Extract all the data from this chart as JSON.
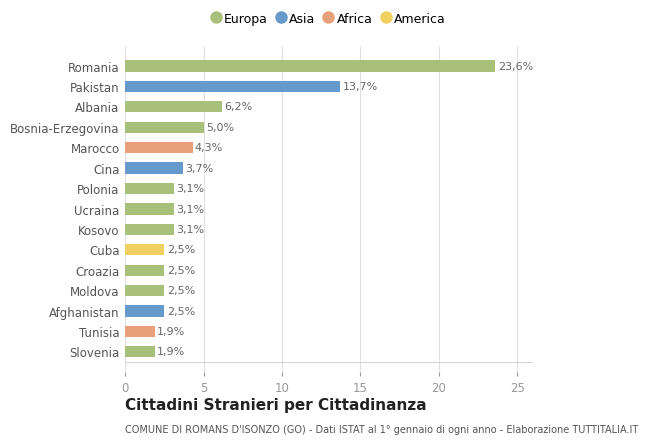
{
  "countries": [
    "Slovenia",
    "Tunisia",
    "Afghanistan",
    "Moldova",
    "Croazia",
    "Cuba",
    "Kosovo",
    "Ucraina",
    "Polonia",
    "Cina",
    "Marocco",
    "Bosnia-Erzegovina",
    "Albania",
    "Pakistan",
    "Romania"
  ],
  "values": [
    1.9,
    1.9,
    2.5,
    2.5,
    2.5,
    2.5,
    3.1,
    3.1,
    3.1,
    3.7,
    4.3,
    5.0,
    6.2,
    13.7,
    23.6
  ],
  "bar_colors": [
    "#a8c07a",
    "#e8a07a",
    "#6699cc",
    "#a8c07a",
    "#a8c07a",
    "#f0d060",
    "#a8c07a",
    "#a8c07a",
    "#a8c07a",
    "#6699cc",
    "#e8a07a",
    "#a8c07a",
    "#a8c07a",
    "#6699cc",
    "#a8c07a"
  ],
  "labels": [
    "1,9%",
    "1,9%",
    "2,5%",
    "2,5%",
    "2,5%",
    "2,5%",
    "3,1%",
    "3,1%",
    "3,1%",
    "3,7%",
    "4,3%",
    "5,0%",
    "6,2%",
    "13,7%",
    "23,6%"
  ],
  "xlim": [
    0,
    26
  ],
  "xticks": [
    0,
    5,
    10,
    15,
    20,
    25
  ],
  "title": "Cittadini Stranieri per Cittadinanza",
  "subtitle": "COMUNE DI ROMANS D'ISONZO (GO) - Dati ISTAT al 1° gennaio di ogni anno - Elaborazione TUTTITALIA.IT",
  "legend_labels": [
    "Europa",
    "Asia",
    "Africa",
    "America"
  ],
  "legend_colors": [
    "#a8c07a",
    "#6699cc",
    "#e8a07a",
    "#f0d060"
  ],
  "bg_color": "#ffffff",
  "grid_color": "#e0e0e0",
  "label_fontsize": 8.0,
  "tick_fontsize": 8.5,
  "title_fontsize": 11,
  "subtitle_fontsize": 7.0,
  "bar_height": 0.55
}
